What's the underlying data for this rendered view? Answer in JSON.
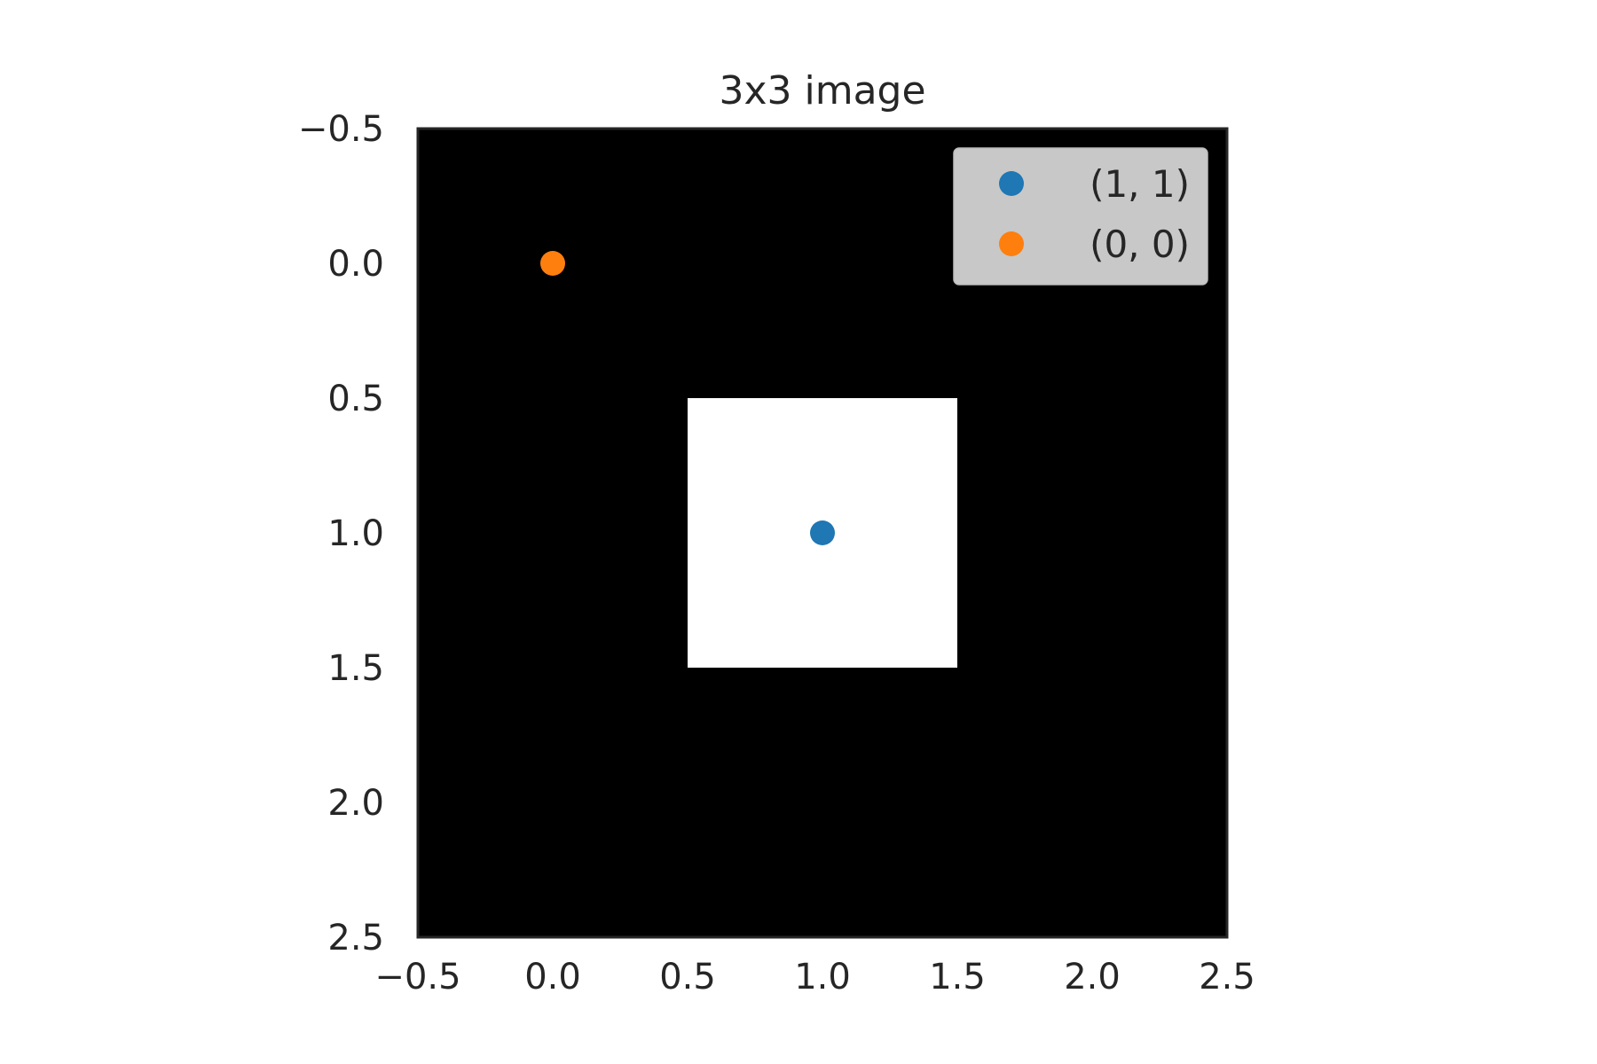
{
  "chart_data": {
    "type": "heatmap",
    "title": "3x3 image",
    "xlabel": "",
    "ylabel": "",
    "xlim": [
      -0.5,
      2.5
    ],
    "ylim": [
      2.5,
      -0.5
    ],
    "xticks": [
      "−0.5",
      "0.0",
      "0.5",
      "1.0",
      "1.5",
      "2.0",
      "2.5"
    ],
    "yticks": [
      "−0.5",
      "0.0",
      "0.5",
      "1.0",
      "1.5",
      "2.0",
      "2.5"
    ],
    "grid": false,
    "colormap": "gray",
    "image": [
      [
        0,
        0,
        0
      ],
      [
        0,
        1,
        0
      ],
      [
        0,
        0,
        0
      ]
    ],
    "series": [
      {
        "name": "(1, 1)",
        "color": "#1f77b4",
        "type": "scatter",
        "x": [
          1
        ],
        "y": [
          1
        ]
      },
      {
        "name": "(0, 0)",
        "color": "#ff7f0e",
        "type": "scatter",
        "x": [
          0
        ],
        "y": [
          0
        ]
      }
    ],
    "legend": "top-right"
  }
}
